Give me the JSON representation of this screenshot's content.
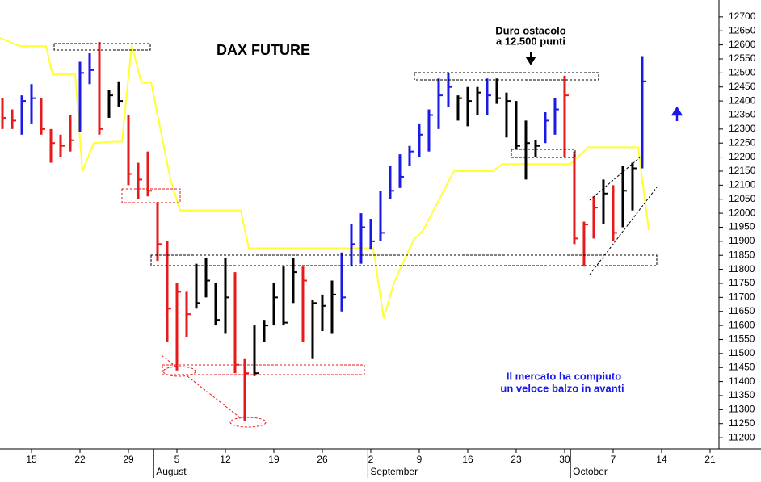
{
  "chart_data": {
    "type": "ohlc",
    "title": "DAX FUTURE",
    "annotations": [
      "Duro ostacolo",
      "a 12.500 punti",
      "Il mercato ha compiuto",
      "un veloce balzo in avanti"
    ],
    "xlim": [
      -3.25,
      70.92
    ],
    "ylim": [
      11160,
      12760
    ],
    "xticks": [
      {
        "value": 0,
        "label": "15"
      },
      {
        "value": 5,
        "label": "22"
      },
      {
        "value": 10,
        "label": "29"
      },
      {
        "value": 15,
        "label": "5"
      },
      {
        "value": 20,
        "label": "12"
      },
      {
        "value": 25,
        "label": "19"
      },
      {
        "value": 30,
        "label": "26"
      },
      {
        "value": 35,
        "label": "2"
      },
      {
        "value": 40,
        "label": "9"
      },
      {
        "value": 45,
        "label": "16"
      },
      {
        "value": 50,
        "label": "23"
      },
      {
        "value": 55,
        "label": "30"
      },
      {
        "value": 60,
        "label": "7"
      },
      {
        "value": 65,
        "label": "14"
      },
      {
        "value": 70,
        "label": "21"
      }
    ],
    "month_ticks": [
      {
        "value": 12.6,
        "label": "August"
      },
      {
        "value": 34.7,
        "label": "September"
      },
      {
        "value": 55.6,
        "label": "October"
      }
    ],
    "yticks": [
      11200,
      11250,
      11300,
      11350,
      11400,
      11450,
      11500,
      11550,
      11600,
      11650,
      11700,
      11750,
      11800,
      11850,
      11900,
      11950,
      12000,
      12050,
      12100,
      12150,
      12200,
      12250,
      12300,
      12350,
      12400,
      12450,
      12500,
      12550,
      12600,
      12650,
      12700
    ],
    "bars": {
      "x": [
        -3,
        -2,
        -1,
        0,
        1,
        2,
        3,
        4,
        5,
        6,
        7,
        8,
        9,
        10,
        11,
        12,
        13,
        14,
        15,
        16,
        17,
        18,
        19,
        20,
        21,
        22,
        23,
        24,
        25,
        26,
        27,
        28,
        29,
        30,
        31,
        32,
        33,
        34,
        35,
        36,
        37,
        38,
        39,
        40,
        41,
        42,
        43,
        44,
        45,
        46,
        47,
        48,
        49,
        50,
        51,
        52,
        53,
        54,
        55,
        56,
        57,
        58,
        59,
        60,
        61,
        62,
        63
      ],
      "high": [
        12410,
        12370,
        12420,
        12460,
        12410,
        12300,
        12280,
        12350,
        12540,
        12570,
        12610,
        12440,
        12470,
        12350,
        12180,
        12220,
        12040,
        11900,
        11750,
        11720,
        11820,
        11840,
        11750,
        11840,
        11790,
        11480,
        11600,
        11620,
        11750,
        11810,
        11840,
        11810,
        11690,
        11710,
        11760,
        11860,
        11960,
        12000,
        11980,
        12080,
        12170,
        12210,
        12240,
        12320,
        12370,
        12480,
        12500,
        12420,
        12450,
        12450,
        12480,
        12480,
        12430,
        12400,
        12330,
        12260,
        12360,
        12410,
        12490,
        12220,
        11970,
        12060,
        12120,
        12100,
        12170,
        12180,
        12560
      ],
      "low": [
        12300,
        12300,
        12280,
        12320,
        12280,
        12180,
        12200,
        12220,
        12290,
        12460,
        12280,
        12340,
        12380,
        12100,
        12050,
        12060,
        11830,
        11540,
        11440,
        11560,
        11660,
        11700,
        11600,
        11570,
        11430,
        11260,
        11420,
        11540,
        11600,
        11600,
        11680,
        11540,
        11480,
        11580,
        11570,
        11650,
        11810,
        11820,
        11870,
        11900,
        12050,
        12090,
        12170,
        12200,
        12220,
        12300,
        12380,
        12330,
        12310,
        12350,
        12350,
        12390,
        12270,
        12230,
        12120,
        12200,
        12250,
        12280,
        12200,
        11890,
        11810,
        11910,
        11960,
        11900,
        11950,
        12010,
        12160
      ],
      "close": [
        12340,
        12330,
        12400,
        12410,
        12300,
        12250,
        12240,
        12260,
        12500,
        12510,
        12300,
        12420,
        12400,
        12140,
        12120,
        12080,
        11890,
        11660,
        11720,
        11640,
        11680,
        11760,
        11620,
        11700,
        11460,
        11430,
        11430,
        11600,
        11700,
        11610,
        11790,
        11760,
        11680,
        11670,
        11710,
        11700,
        11890,
        11950,
        11900,
        11930,
        12080,
        12130,
        12220,
        12280,
        12350,
        12420,
        12450,
        12410,
        12400,
        12430,
        12420,
        12410,
        12400,
        12240,
        12250,
        12240,
        12330,
        12370,
        12420,
        11910,
        11960,
        12020,
        12070,
        11930,
        12080,
        12160,
        12470
      ],
      "colors": [
        "#e8191a",
        "#e8191a",
        "#1a1ae8",
        "#1a1ae8",
        "#e8191a",
        "#e8191a",
        "#e8191a",
        "#e8191a",
        "#1a1ae8",
        "#1a1ae8",
        "#e8191a",
        "#000000",
        "#000000",
        "#e8191a",
        "#e8191a",
        "#e8191a",
        "#e8191a",
        "#e8191a",
        "#e8191a",
        "#e8191a",
        "#000000",
        "#000000",
        "#000000",
        "#000000",
        "#e8191a",
        "#e8191a",
        "#000000",
        "#000000",
        "#000000",
        "#000000",
        "#000000",
        "#e8191a",
        "#000000",
        "#000000",
        "#000000",
        "#1a1ae8",
        "#1a1ae8",
        "#1a1ae8",
        "#1a1ae8",
        "#1a1ae8",
        "#1a1ae8",
        "#1a1ae8",
        "#1a1ae8",
        "#1a1ae8",
        "#1a1ae8",
        "#1a1ae8",
        "#1a1ae8",
        "#000000",
        "#000000",
        "#000000",
        "#1a1ae8",
        "#000000",
        "#000000",
        "#000000",
        "#000000",
        "#000000",
        "#1a1ae8",
        "#1a1ae8",
        "#e8191a",
        "#e8191a",
        "#e8191a",
        "#e8191a",
        "#000000",
        "#e8191a",
        "#000000",
        "#000000",
        "#1a1ae8"
      ]
    },
    "line": {
      "color": "#ffff33",
      "x": [
        -3.25,
        -1.17,
        1.5,
        2.17,
        4.5,
        5.25,
        6.42,
        8.42,
        9.33,
        10.33,
        11.33,
        12.33,
        14.33,
        15.33,
        21.58,
        22.42,
        35.25,
        36.33,
        37.42,
        39.42,
        40.42,
        43.58,
        47.58,
        48.58,
        55.58,
        57.42,
        62.58,
        63.67
      ],
      "values": [
        12625,
        12595,
        12595,
        12495,
        12495,
        12150,
        12250,
        12255,
        12255,
        12600,
        12465,
        12465,
        12120,
        12010,
        12010,
        11875,
        11875,
        11625,
        11755,
        11905,
        11940,
        12150,
        12150,
        12175,
        12175,
        12235,
        12235,
        11940
      ]
    }
  }
}
